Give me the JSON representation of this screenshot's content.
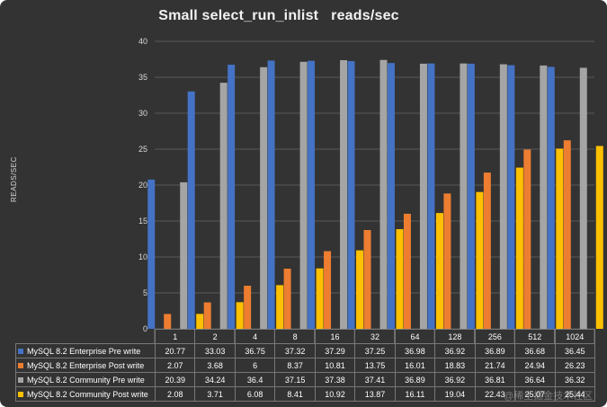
{
  "chart_data": {
    "type": "bar",
    "title": "Small select_run_inlist   reads/sec",
    "ylabel": "READS/SEC",
    "ylim": [
      0,
      40
    ],
    "yticks": [
      0,
      5,
      10,
      15,
      20,
      25,
      30,
      35,
      40
    ],
    "categories": [
      "1",
      "2",
      "4",
      "8",
      "16",
      "32",
      "64",
      "128",
      "256",
      "512",
      "1024"
    ],
    "series": [
      {
        "name": "MySQL 8.2 Enterprise Pre write",
        "color": "#4472c4",
        "values": [
          20.77,
          33.03,
          36.75,
          37.32,
          37.29,
          37.25,
          36.98,
          36.92,
          36.89,
          36.68,
          36.45
        ]
      },
      {
        "name": "MySQL 8.2 Enterprise Post write",
        "color": "#ed7d31",
        "values": [
          2.07,
          3.68,
          6,
          8.37,
          10.81,
          13.75,
          16.01,
          18.83,
          21.74,
          24.94,
          26.23
        ]
      },
      {
        "name": "MySQL 8.2 Community Pre write",
        "color": "#a5a5a5",
        "values": [
          20.39,
          34.24,
          36.4,
          37.15,
          37.38,
          37.41,
          36.89,
          36.92,
          36.81,
          36.64,
          36.32
        ]
      },
      {
        "name": "MySQL 8.2 Community Post write",
        "color": "#ffc000",
        "values": [
          2.08,
          3.71,
          6.08,
          8.41,
          10.92,
          13.87,
          16.11,
          19.04,
          22.43,
          25.07,
          25.44
        ]
      }
    ],
    "data_table": true,
    "grid": true
  },
  "watermark": "@稀土掘金技术社区"
}
